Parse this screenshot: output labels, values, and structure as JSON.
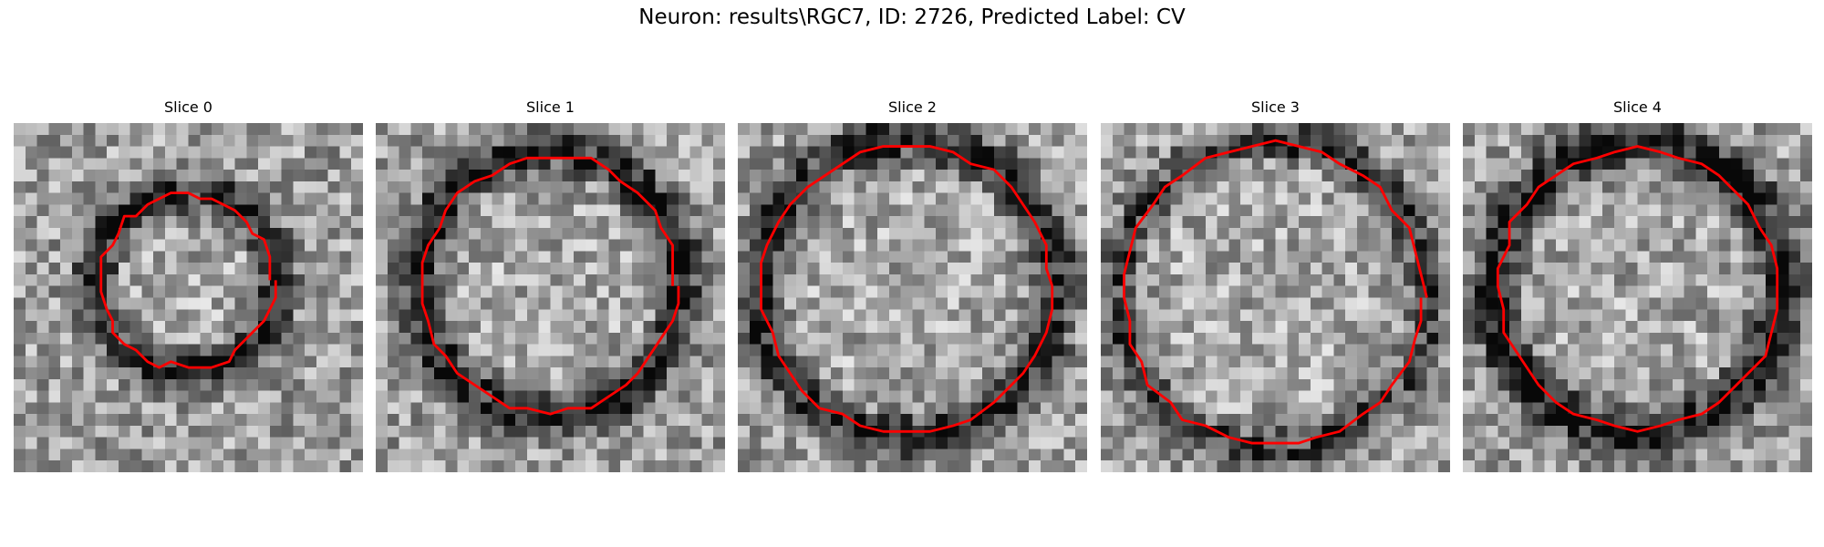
{
  "figure": {
    "title": "Neuron: results\\RGC7, ID: 2726, Predicted Label: CV"
  },
  "panels": [
    {
      "label": "Slice 0"
    },
    {
      "label": "Slice 1"
    },
    {
      "label": "Slice 2"
    },
    {
      "label": "Slice 3"
    },
    {
      "label": "Slice 4"
    }
  ],
  "colors": {
    "contour": "#ff0000",
    "background": "#ffffff"
  }
}
